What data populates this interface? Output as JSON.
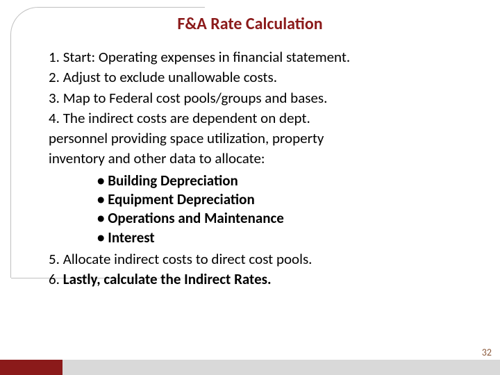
{
  "title": "F&A Rate Calculation",
  "title_color": "#8b1a1a",
  "title_fontsize": 24,
  "body_fontsize": 21,
  "body_color": "#000000",
  "items": {
    "i1_num": "1.",
    "i1_text": "Start: Operating expenses in financial statement.",
    "i2_num": "2.",
    "i2_text": "Adjust to exclude unallowable costs.",
    "i3_num": "3.",
    "i3_text": "Map to Federal cost pools/groups and bases.",
    "i4_num": "4.",
    "i4_text": "The indirect costs are dependent on dept.",
    "i4_cont1": "personnel providing space utilization, property",
    "i4_cont2": "inventory and other data to allocate:",
    "i5_num": "5.",
    "i5_text": "Allocate indirect costs to direct cost pools.",
    "i6_num": "6.",
    "i6_text": "Lastly, calculate the Indirect Rates."
  },
  "bullets": {
    "b1": "Building Depreciation",
    "b2": "Equipment Depreciation",
    "b3": "Operations and Maintenance",
    "b4": "Interest",
    "mark": "•"
  },
  "page_number": "32",
  "page_num_color": "#8b5a3c",
  "bar_red_color": "#8b1a1a",
  "bar_gray_color": "#d9d9d9",
  "curve_color": "#c0c0c0"
}
